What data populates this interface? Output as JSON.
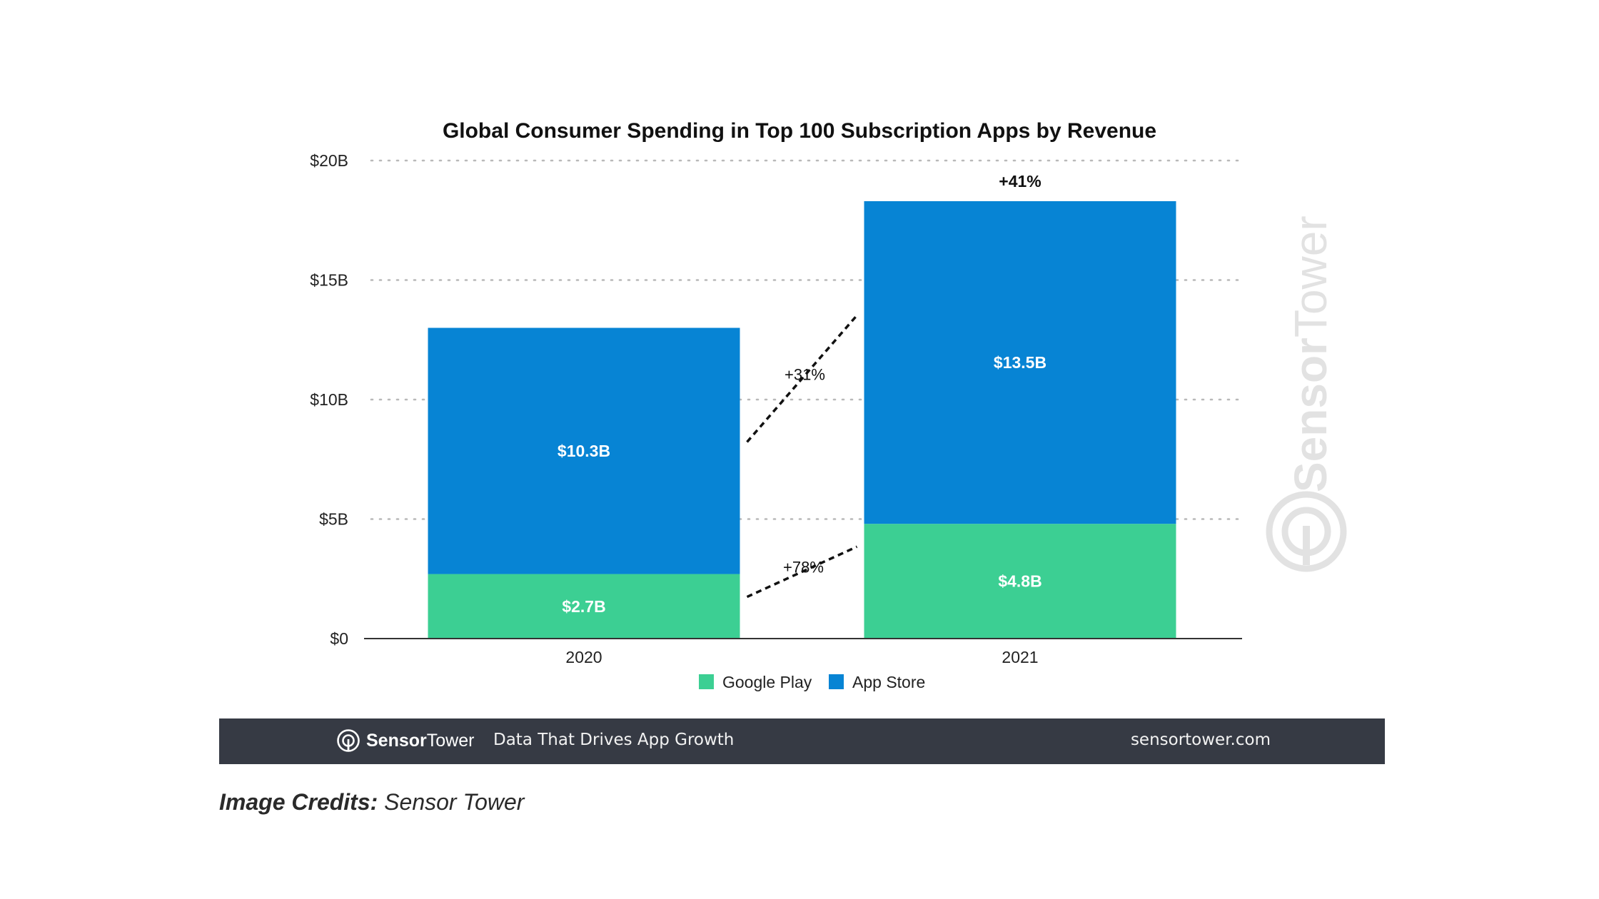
{
  "chart_data": {
    "type": "bar",
    "stacked": true,
    "title": "Global Consumer Spending in Top 100 Subscription Apps by Revenue",
    "xlabel": "",
    "ylabel": "",
    "categories": [
      "2020",
      "2021"
    ],
    "series": [
      {
        "name": "Google Play",
        "values": [
          2.7,
          4.8
        ],
        "labels": [
          "$2.7B",
          "$4.8B"
        ],
        "color": "#3ccf93"
      },
      {
        "name": "App Store",
        "values": [
          10.3,
          13.5
        ],
        "labels": [
          "$10.3B",
          "$13.5B"
        ],
        "color": "#0784d4"
      }
    ],
    "ylim": [
      0,
      20
    ],
    "yticks": [
      0,
      5,
      10,
      15,
      20
    ],
    "ytick_labels": [
      "$0",
      "$5B",
      "$10B",
      "$15B",
      "$20B"
    ],
    "grid": true,
    "legend_position": "bottom-center",
    "annotations": {
      "google_play_growth": "+78%",
      "app_store_growth": "+31%",
      "total_growth": "+41%"
    }
  },
  "watermark": {
    "brand_bold": "Sensor",
    "brand_regular": "Tower",
    "icon": "sensor-tower-logo-icon"
  },
  "footer": {
    "logo_bold": "Sensor",
    "logo_regular": "Tower",
    "tagline": "Data That Drives App Growth",
    "url": "sensortower.com",
    "background": "#363a44"
  },
  "credits": {
    "label": "Image Credits:",
    "source": "Sensor Tower"
  }
}
